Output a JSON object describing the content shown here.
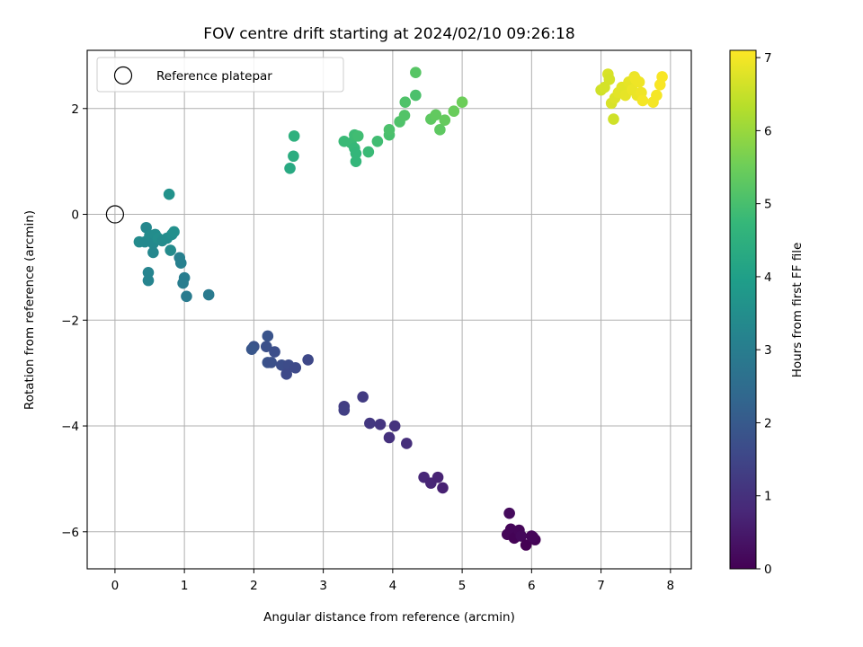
{
  "chart_data": {
    "type": "scatter",
    "title": "FOV centre drift starting at 2024/02/10 09:26:18",
    "xlabel": "Angular distance from reference (arcmin)",
    "ylabel": "Rotation from reference (arcmin)",
    "xlim": [
      -0.4,
      8.3
    ],
    "ylim": [
      -6.7,
      3.1
    ],
    "xticks": [
      0,
      1,
      2,
      3,
      4,
      5,
      6,
      7,
      8
    ],
    "yticks": [
      -6,
      -4,
      -2,
      0,
      2
    ],
    "grid": true,
    "legend": {
      "placement": "top-left",
      "entries": [
        "Reference platepar"
      ]
    },
    "reference_point": {
      "x": 0,
      "y": 0
    },
    "colorbar": {
      "label": "Hours from first FF file",
      "range": [
        0,
        7.1
      ],
      "ticks": [
        0,
        1,
        2,
        3,
        4,
        5,
        6,
        7
      ],
      "colormap": "viridis"
    },
    "points": [
      {
        "x": 5.68,
        "y": -5.65,
        "t": 0.2
      },
      {
        "x": 5.65,
        "y": -6.05,
        "t": 0.1
      },
      {
        "x": 5.7,
        "y": -5.95,
        "t": 0.1
      },
      {
        "x": 5.75,
        "y": -6.12,
        "t": 0.05
      },
      {
        "x": 5.82,
        "y": -5.97,
        "t": 0.1
      },
      {
        "x": 5.85,
        "y": -6.08,
        "t": 0.15
      },
      {
        "x": 5.92,
        "y": -6.25,
        "t": 0.0
      },
      {
        "x": 6.0,
        "y": -6.08,
        "t": 0.1
      },
      {
        "x": 6.05,
        "y": -6.15,
        "t": 0.05
      },
      {
        "x": 6.02,
        "y": -6.1,
        "t": 0.1
      },
      {
        "x": 4.45,
        "y": -4.97,
        "t": 0.8
      },
      {
        "x": 4.55,
        "y": -5.08,
        "t": 0.75
      },
      {
        "x": 4.65,
        "y": -4.97,
        "t": 0.7
      },
      {
        "x": 4.72,
        "y": -5.17,
        "t": 0.65
      },
      {
        "x": 3.95,
        "y": -4.22,
        "t": 1.0
      },
      {
        "x": 4.2,
        "y": -4.33,
        "t": 0.95
      },
      {
        "x": 4.03,
        "y": -4.0,
        "t": 1.05
      },
      {
        "x": 3.82,
        "y": -3.97,
        "t": 1.1
      },
      {
        "x": 3.67,
        "y": -3.95,
        "t": 1.15
      },
      {
        "x": 3.3,
        "y": -3.63,
        "t": 1.3
      },
      {
        "x": 3.3,
        "y": -3.7,
        "t": 1.35
      },
      {
        "x": 3.57,
        "y": -3.45,
        "t": 1.25
      },
      {
        "x": 2.0,
        "y": -2.5,
        "t": 1.8
      },
      {
        "x": 1.97,
        "y": -2.55,
        "t": 1.9
      },
      {
        "x": 2.2,
        "y": -2.3,
        "t": 1.85
      },
      {
        "x": 2.18,
        "y": -2.5,
        "t": 1.75
      },
      {
        "x": 2.3,
        "y": -2.6,
        "t": 1.7
      },
      {
        "x": 2.2,
        "y": -2.8,
        "t": 1.8
      },
      {
        "x": 2.25,
        "y": -2.8,
        "t": 1.75
      },
      {
        "x": 2.4,
        "y": -2.85,
        "t": 1.7
      },
      {
        "x": 2.5,
        "y": -2.85,
        "t": 1.65
      },
      {
        "x": 2.6,
        "y": -2.9,
        "t": 1.6
      },
      {
        "x": 2.47,
        "y": -3.02,
        "t": 1.6
      },
      {
        "x": 2.78,
        "y": -2.75,
        "t": 1.55
      },
      {
        "x": 0.35,
        "y": -0.52,
        "t": 3.4
      },
      {
        "x": 0.43,
        "y": -0.52,
        "t": 3.35
      },
      {
        "x": 0.45,
        "y": -0.25,
        "t": 3.3
      },
      {
        "x": 0.5,
        "y": -0.4,
        "t": 3.4
      },
      {
        "x": 0.55,
        "y": -0.55,
        "t": 3.35
      },
      {
        "x": 0.58,
        "y": -0.38,
        "t": 3.45
      },
      {
        "x": 0.62,
        "y": -0.45,
        "t": 3.5
      },
      {
        "x": 0.68,
        "y": -0.5,
        "t": 3.4
      },
      {
        "x": 0.75,
        "y": -0.45,
        "t": 3.45
      },
      {
        "x": 0.82,
        "y": -0.38,
        "t": 3.5
      },
      {
        "x": 0.85,
        "y": -0.33,
        "t": 3.55
      },
      {
        "x": 0.55,
        "y": -0.72,
        "t": 3.3
      },
      {
        "x": 0.8,
        "y": -0.68,
        "t": 3.4
      },
      {
        "x": 0.78,
        "y": 0.38,
        "t": 3.6
      },
      {
        "x": 0.48,
        "y": -1.1,
        "t": 3.2
      },
      {
        "x": 0.48,
        "y": -1.25,
        "t": 3.2
      },
      {
        "x": 0.93,
        "y": -0.82,
        "t": 3.1
      },
      {
        "x": 0.95,
        "y": -0.92,
        "t": 3.1
      },
      {
        "x": 1.0,
        "y": -1.2,
        "t": 3.0
      },
      {
        "x": 0.98,
        "y": -1.3,
        "t": 3.0
      },
      {
        "x": 1.03,
        "y": -1.55,
        "t": 2.95
      },
      {
        "x": 1.35,
        "y": -1.52,
        "t": 2.9
      },
      {
        "x": 2.52,
        "y": 0.87,
        "t": 4.3
      },
      {
        "x": 2.57,
        "y": 1.1,
        "t": 4.4
      },
      {
        "x": 2.58,
        "y": 1.48,
        "t": 4.5
      },
      {
        "x": 3.3,
        "y": 1.38,
        "t": 4.8
      },
      {
        "x": 3.4,
        "y": 1.35,
        "t": 4.8
      },
      {
        "x": 3.45,
        "y": 1.5,
        "t": 4.85
      },
      {
        "x": 3.5,
        "y": 1.48,
        "t": 4.9
      },
      {
        "x": 3.45,
        "y": 1.25,
        "t": 4.75
      },
      {
        "x": 3.47,
        "y": 1.15,
        "t": 4.7
      },
      {
        "x": 3.47,
        "y": 1.0,
        "t": 4.7
      },
      {
        "x": 3.65,
        "y": 1.18,
        "t": 4.8
      },
      {
        "x": 3.78,
        "y": 1.38,
        "t": 4.9
      },
      {
        "x": 3.95,
        "y": 1.5,
        "t": 5.0
      },
      {
        "x": 3.95,
        "y": 1.6,
        "t": 5.05
      },
      {
        "x": 4.1,
        "y": 1.75,
        "t": 5.1
      },
      {
        "x": 4.17,
        "y": 1.87,
        "t": 5.15
      },
      {
        "x": 4.18,
        "y": 2.12,
        "t": 5.1
      },
      {
        "x": 4.33,
        "y": 2.25,
        "t": 5.05
      },
      {
        "x": 4.33,
        "y": 2.68,
        "t": 5.2
      },
      {
        "x": 4.55,
        "y": 1.8,
        "t": 5.3
      },
      {
        "x": 4.62,
        "y": 1.88,
        "t": 5.35
      },
      {
        "x": 4.68,
        "y": 1.6,
        "t": 5.3
      },
      {
        "x": 4.75,
        "y": 1.78,
        "t": 5.4
      },
      {
        "x": 4.88,
        "y": 1.95,
        "t": 5.45
      },
      {
        "x": 5.0,
        "y": 2.12,
        "t": 5.5
      },
      {
        "x": 7.0,
        "y": 2.35,
        "t": 6.6
      },
      {
        "x": 7.05,
        "y": 2.4,
        "t": 6.65
      },
      {
        "x": 7.1,
        "y": 2.65,
        "t": 6.7
      },
      {
        "x": 7.12,
        "y": 2.55,
        "t": 6.65
      },
      {
        "x": 7.15,
        "y": 2.1,
        "t": 6.7
      },
      {
        "x": 7.18,
        "y": 1.8,
        "t": 6.6
      },
      {
        "x": 7.2,
        "y": 2.2,
        "t": 6.75
      },
      {
        "x": 7.25,
        "y": 2.3,
        "t": 6.8
      },
      {
        "x": 7.3,
        "y": 2.4,
        "t": 6.8
      },
      {
        "x": 7.35,
        "y": 2.25,
        "t": 6.85
      },
      {
        "x": 7.4,
        "y": 2.5,
        "t": 6.85
      },
      {
        "x": 7.45,
        "y": 2.35,
        "t": 6.9
      },
      {
        "x": 7.48,
        "y": 2.6,
        "t": 6.9
      },
      {
        "x": 7.5,
        "y": 2.55,
        "t": 6.95
      },
      {
        "x": 7.52,
        "y": 2.25,
        "t": 6.9
      },
      {
        "x": 7.55,
        "y": 2.5,
        "t": 6.95
      },
      {
        "x": 7.58,
        "y": 2.3,
        "t": 6.95
      },
      {
        "x": 7.6,
        "y": 2.15,
        "t": 7.0
      },
      {
        "x": 7.75,
        "y": 2.12,
        "t": 7.0
      },
      {
        "x": 7.8,
        "y": 2.25,
        "t": 7.0
      },
      {
        "x": 7.85,
        "y": 2.45,
        "t": 7.05
      },
      {
        "x": 7.88,
        "y": 2.6,
        "t": 7.05
      }
    ]
  }
}
